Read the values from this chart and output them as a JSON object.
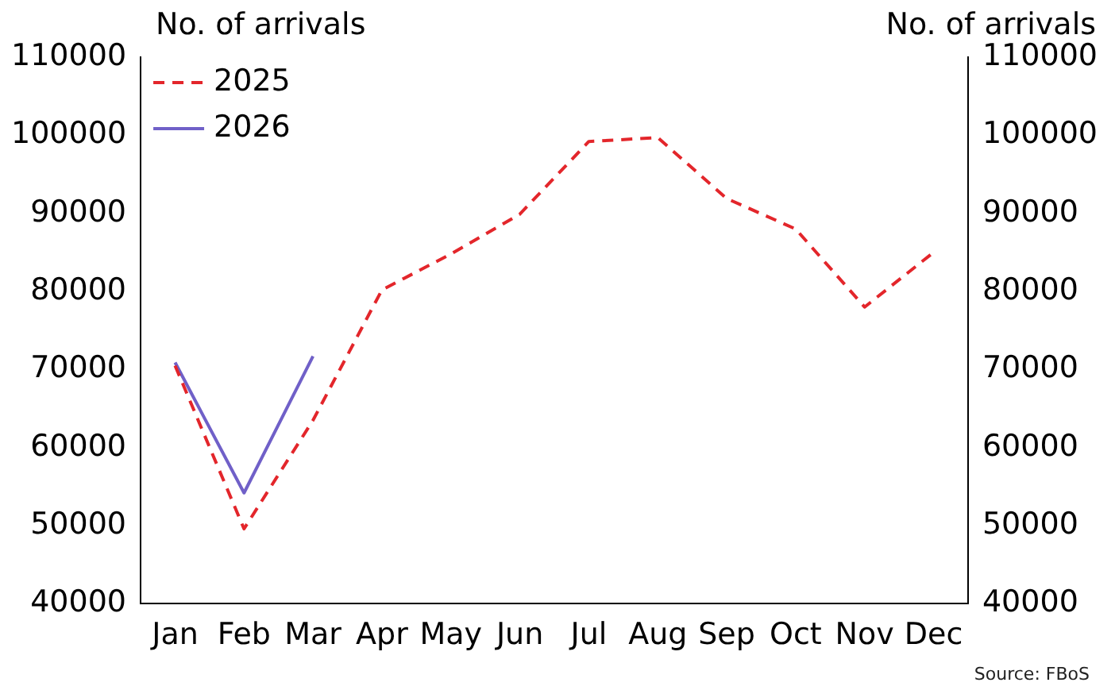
{
  "chart_data": {
    "type": "line",
    "ylabel": "No. of arrivals",
    "y2label": "No. of arrivals",
    "categories": [
      "Jan",
      "Feb",
      "Mar",
      "Apr",
      "May",
      "Jun",
      "Jul",
      "Aug",
      "Sep",
      "Oct",
      "Nov",
      "Dec"
    ],
    "series": [
      {
        "name": "2025",
        "color": "#e3262b",
        "line_style": "dashed",
        "values": [
          70500,
          49600,
          63500,
          80200,
          84800,
          89900,
          99200,
          99700,
          91900,
          88000,
          78000,
          85000
        ]
      },
      {
        "name": "2026",
        "color": "#7060c8",
        "line_style": "solid",
        "values": [
          70900,
          54200,
          71700,
          null,
          null,
          null,
          null,
          null,
          null,
          null,
          null,
          null
        ]
      }
    ],
    "ylim": [
      40000,
      110000
    ],
    "yticks": [
      40000,
      50000,
      60000,
      70000,
      80000,
      90000,
      100000,
      110000
    ],
    "y2lim": [
      40000,
      110000
    ],
    "y2ticks": [
      40000,
      50000,
      60000,
      70000,
      80000,
      90000,
      100000,
      110000
    ],
    "grid": false,
    "legend": "top left",
    "marker": "none",
    "annotations": [
      "Source: FBoS"
    ]
  }
}
